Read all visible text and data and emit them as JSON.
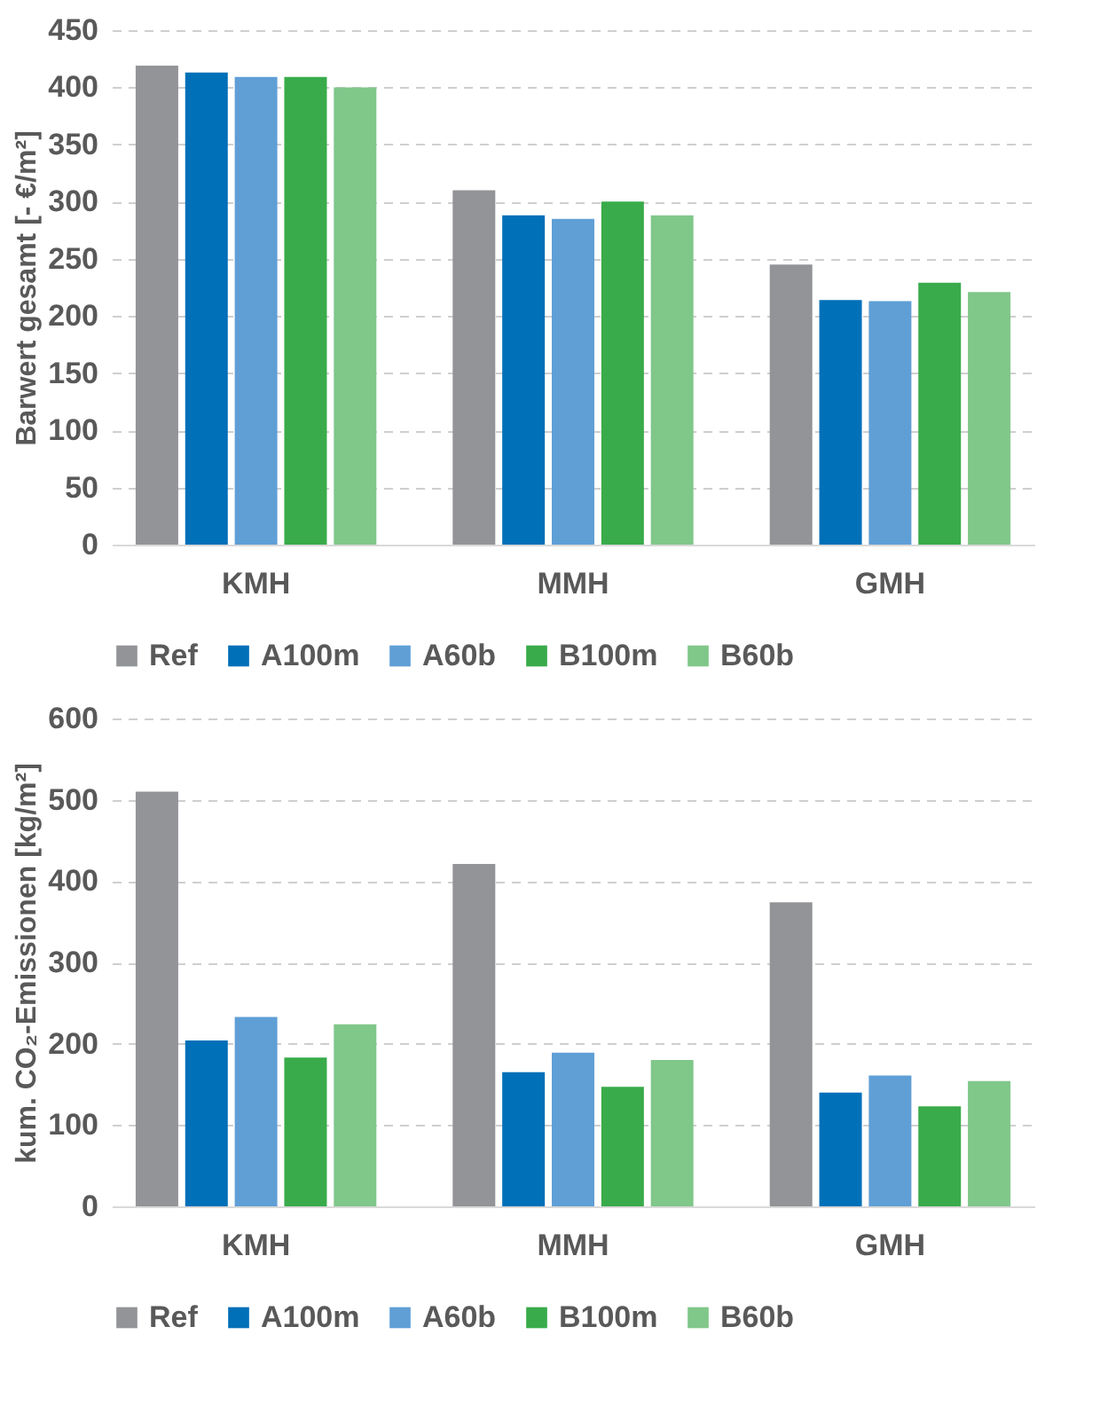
{
  "chart_data": [
    {
      "type": "bar",
      "ylabel": "Barwert gesamt [- €/m²]",
      "categories": [
        "KMH",
        "MMH",
        "GMH"
      ],
      "ylim": [
        0,
        450
      ],
      "yticks": [
        0,
        50,
        100,
        150,
        200,
        250,
        300,
        350,
        400,
        450
      ],
      "grid": "y",
      "legend": "bottom",
      "series": [
        {
          "name": "Ref",
          "color": "#929497",
          "values": [
            419,
            310,
            245
          ]
        },
        {
          "name": "A100m",
          "color": "#0070b8",
          "values": [
            413,
            288,
            214
          ]
        },
        {
          "name": "A60b",
          "color": "#5f9fd6",
          "values": [
            409,
            285,
            213
          ]
        },
        {
          "name": "B100m",
          "color": "#39ab4a",
          "values": [
            409,
            300,
            229
          ]
        },
        {
          "name": "B60b",
          "color": "#80c78a",
          "values": [
            400,
            288,
            221
          ]
        }
      ]
    },
    {
      "type": "bar",
      "ylabel": "kum. CO₂-Emissionen [kg/m²]",
      "categories": [
        "KMH",
        "MMH",
        "GMH"
      ],
      "ylim": [
        0,
        600
      ],
      "yticks": [
        0,
        100,
        200,
        300,
        400,
        500,
        600
      ],
      "grid": "y",
      "legend": "bottom",
      "series": [
        {
          "name": "Ref",
          "color": "#929497",
          "values": [
            510,
            421,
            374
          ]
        },
        {
          "name": "A100m",
          "color": "#0070b8",
          "values": [
            204,
            165,
            140
          ]
        },
        {
          "name": "A60b",
          "color": "#5f9fd6",
          "values": [
            233,
            189,
            161
          ]
        },
        {
          "name": "B100m",
          "color": "#39ab4a",
          "values": [
            183,
            147,
            123
          ]
        },
        {
          "name": "B60b",
          "color": "#80c78a",
          "values": [
            224,
            180,
            154
          ]
        }
      ]
    }
  ]
}
